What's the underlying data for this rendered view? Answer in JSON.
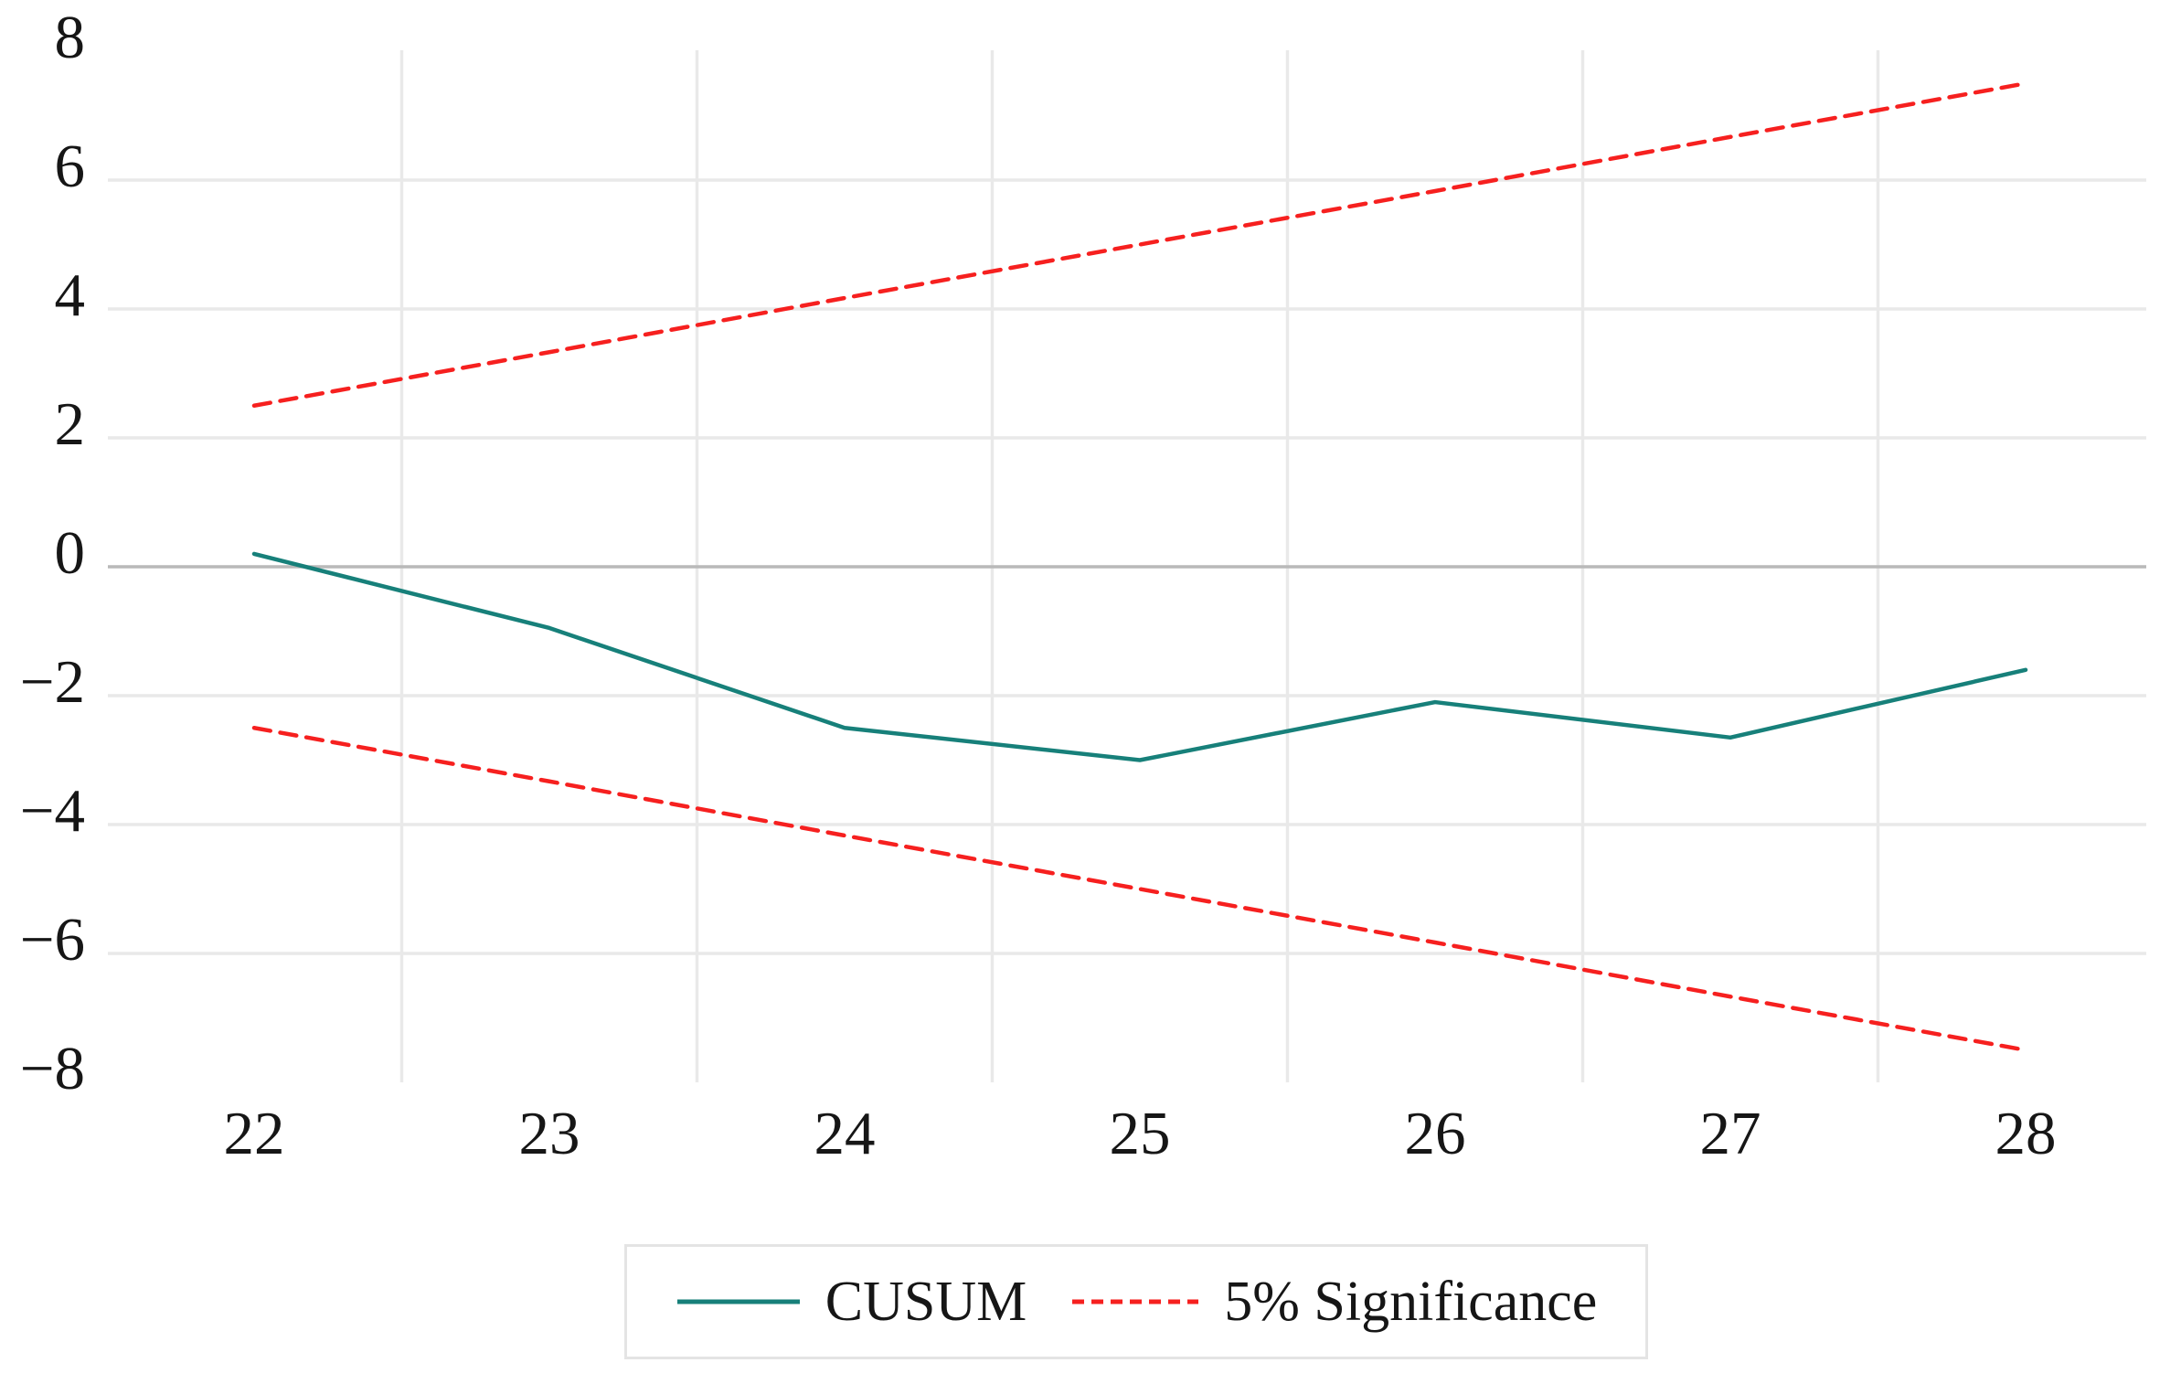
{
  "figure": {
    "background": "#ffffff"
  },
  "colors": {
    "cusum_line": "#17807a",
    "significance_line": "#f6201f",
    "gridline": "#e9e9e9",
    "zero_line": "#b9b9b9",
    "tick_text": "#161616",
    "legend_border": "#e4e4e4",
    "legend_background": "#ffffff",
    "legend_text": "#161616"
  },
  "legend": {
    "position": "bottom",
    "entries": [
      {
        "label": "CUSUM",
        "style": "solid",
        "color": "#17807a"
      },
      {
        "label": "5% Significance",
        "style": "dashed",
        "color": "#f6201f"
      }
    ]
  },
  "chart_data": {
    "type": "line",
    "title": "",
    "xlabel": "",
    "ylabel": "",
    "x": [
      22,
      23,
      24,
      25,
      26,
      27,
      28
    ],
    "series": [
      {
        "name": "CUSUM",
        "style": "solid",
        "color": "#17807a",
        "values": [
          0.2,
          -0.95,
          -2.5,
          -3.0,
          -2.1,
          -2.65,
          -1.6
        ]
      },
      {
        "name": "5% Significance (upper)",
        "style": "dashed",
        "color": "#f6201f",
        "values": [
          2.5,
          3.33,
          4.17,
          5.0,
          5.83,
          6.67,
          7.5
        ]
      },
      {
        "name": "5% Significance (lower)",
        "style": "dashed",
        "color": "#f6201f",
        "values": [
          -2.5,
          -3.33,
          -4.17,
          -5.0,
          -5.83,
          -6.67,
          -7.5
        ]
      }
    ],
    "xlim": [
      21.5,
      28.4
    ],
    "ylim": [
      -8,
      8
    ],
    "x_ticks": [
      22,
      23,
      24,
      25,
      26,
      27,
      28
    ],
    "x_tick_labels": [
      "22",
      "23",
      "24",
      "25",
      "26",
      "27",
      "28"
    ],
    "y_ticks": [
      -8,
      -6,
      -4,
      -2,
      0,
      2,
      4,
      6,
      8
    ],
    "y_tick_labels": [
      "−8",
      "−6",
      "−4",
      "−2",
      "0",
      "2",
      "4",
      "6",
      "8"
    ],
    "grid": {
      "horizontal_at": [
        -6,
        -4,
        -2,
        0,
        2,
        4,
        6
      ],
      "vertical_at": [
        22.5,
        23.5,
        24.5,
        25.5,
        26.5,
        27.5
      ],
      "zero_line_emphasized": true,
      "frame": false
    },
    "legend_position": "bottom"
  }
}
